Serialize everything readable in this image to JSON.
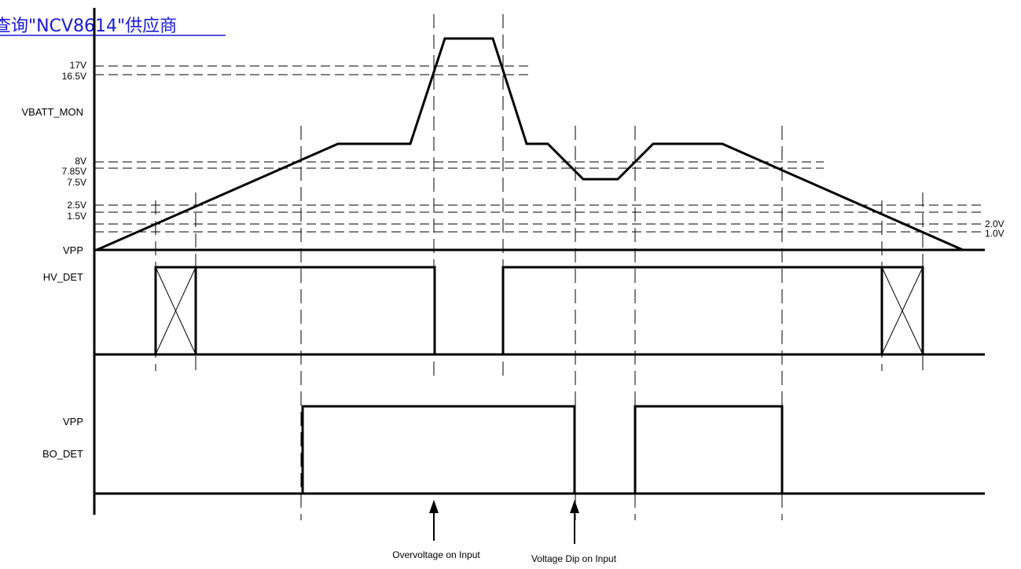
{
  "header": {
    "link_text": "查询\"NCV8614\"供应商",
    "link_color": "#1a1ad6"
  },
  "signals": {
    "vbatt_mon": "VBATT_MON",
    "vpp_top": "VPP",
    "hv_det": "HV_DET",
    "vpp_bottom": "VPP",
    "bo_det": "BO_DET"
  },
  "levels_left": [
    "17V",
    "16.5V",
    "8V",
    "7.85V",
    "7.5V",
    "2.5V",
    "1.5V"
  ],
  "levels_right": [
    "2.0V",
    "1.0V"
  ],
  "annotations": {
    "overvoltage": "Overvoltage on Input",
    "voltage_dip": "Voltage Dip on Input"
  }
}
